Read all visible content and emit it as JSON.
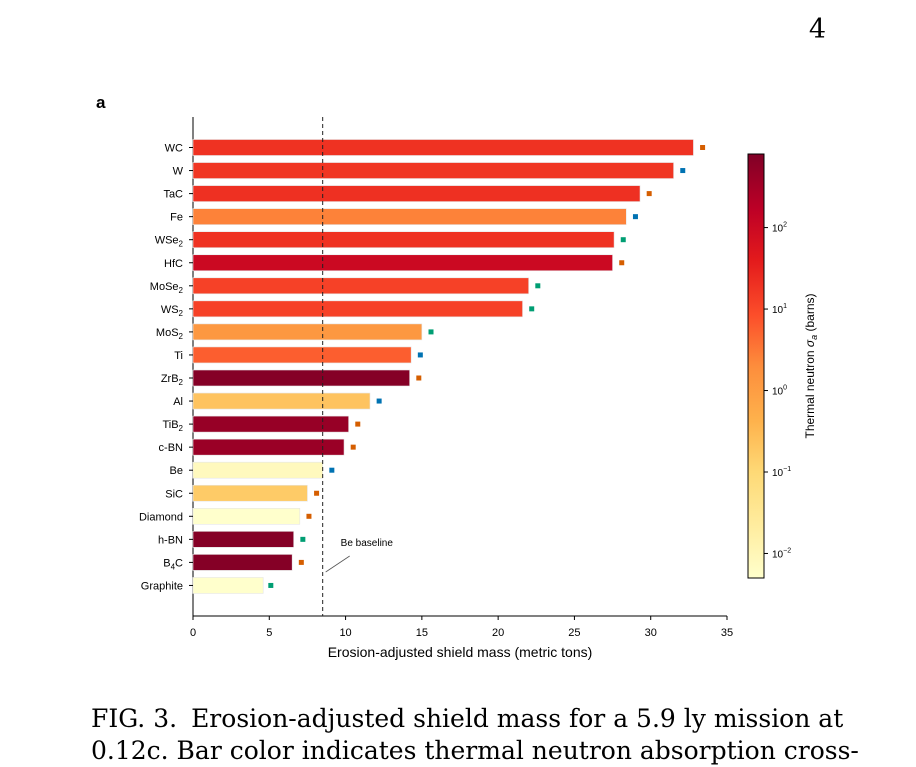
{
  "page": {
    "number": "4",
    "panel_label": "a"
  },
  "chart_data": {
    "type": "bar",
    "orientation": "horizontal",
    "xlabel": "Erosion-adjusted shield mass (metric tons)",
    "xlim": [
      0,
      35
    ],
    "xticks": [
      0,
      5,
      10,
      15,
      20,
      25,
      30,
      35
    ],
    "grid": false,
    "reference_line": {
      "x": 8.5,
      "label": "Be baseline",
      "style": "dashed"
    },
    "categories": [
      {
        "label": "WC",
        "sub": ""
      },
      {
        "label": "W",
        "sub": ""
      },
      {
        "label": "TaC",
        "sub": ""
      },
      {
        "label": "Fe",
        "sub": ""
      },
      {
        "label": "WSe",
        "sub": "2"
      },
      {
        "label": "HfC",
        "sub": ""
      },
      {
        "label": "MoSe",
        "sub": "2"
      },
      {
        "label": "WS",
        "sub": "2"
      },
      {
        "label": "MoS",
        "sub": "2"
      },
      {
        "label": "Ti",
        "sub": ""
      },
      {
        "label": "ZrB",
        "sub": "2"
      },
      {
        "label": "Al",
        "sub": ""
      },
      {
        "label": "TiB",
        "sub": "2"
      },
      {
        "label": "c-BN",
        "sub": ""
      },
      {
        "label": "Be",
        "sub": ""
      },
      {
        "label": "SiC",
        "sub": ""
      },
      {
        "label": "Diamond",
        "sub": ""
      },
      {
        "label": "h-BN",
        "sub": ""
      },
      {
        "label": "B",
        "sub": "4",
        "suffix": "C"
      },
      {
        "label": "Graphite",
        "sub": ""
      }
    ],
    "values": [
      32.8,
      31.5,
      29.3,
      28.4,
      27.6,
      27.5,
      22.0,
      21.6,
      15.0,
      14.3,
      14.2,
      11.6,
      10.2,
      9.9,
      8.5,
      7.5,
      7.0,
      6.6,
      6.5,
      4.6
    ],
    "thermal_neutron_cross_section_barns": [
      20,
      18,
      21,
      2.6,
      20,
      104,
      13,
      13,
      1.3,
      6.1,
      700,
      0.23,
      450,
      420,
      0.008,
      0.17,
      0.0035,
      700,
      700,
      0.0035
    ],
    "marker_values": [
      33.4,
      32.1,
      29.9,
      29.0,
      28.2,
      28.1,
      22.6,
      22.2,
      15.6,
      14.9,
      14.8,
      12.2,
      10.8,
      10.5,
      9.1,
      8.1,
      7.6,
      7.2,
      7.1,
      5.1
    ],
    "marker_colors": [
      "#d55e00",
      "#0072b2",
      "#d55e00",
      "#0072b2",
      "#009e73",
      "#d55e00",
      "#009e73",
      "#009e73",
      "#009e73",
      "#0072b2",
      "#d55e00",
      "#0072b2",
      "#d55e00",
      "#d55e00",
      "#0072b2",
      "#d55e00",
      "#d55e00",
      "#009e73",
      "#d55e00",
      "#009e73"
    ],
    "colorbar": {
      "label": "Thermal neutron σ_a (barns)",
      "label_prefix": "Thermal neutron ",
      "label_symbol": "σ",
      "label_sub": "a",
      "label_suffix": " (barns)",
      "scale": "log",
      "colormap": "YlOrRd",
      "range": [
        0.005,
        800
      ],
      "ticks": [
        {
          "value": 0.01,
          "base": "10",
          "exp": "−2"
        },
        {
          "value": 0.1,
          "base": "10",
          "exp": "−1"
        },
        {
          "value": 1,
          "base": "10",
          "exp": "0"
        },
        {
          "value": 10,
          "base": "10",
          "exp": "1"
        },
        {
          "value": 100,
          "base": "10",
          "exp": "2"
        }
      ]
    }
  },
  "caption": {
    "fig_label": "FIG. 3.",
    "line1_text": "Erosion-adjusted shield mass for a 5.9 ly mission at",
    "line2_text": "0.12c. Bar color indicates thermal neutron absorption cross-"
  }
}
